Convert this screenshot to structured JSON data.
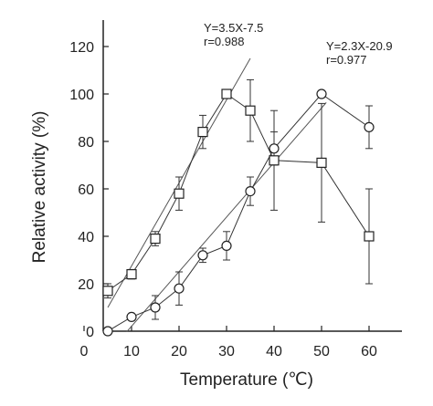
{
  "chart_data": {
    "type": "scatter",
    "xlabel": "Temperature (℃)",
    "ylabel": "Relative activity (%)",
    "xlim": [
      0,
      65
    ],
    "ylim": [
      0,
      130
    ],
    "x_ticks": [
      0,
      10,
      20,
      30,
      40,
      50,
      60
    ],
    "y_ticks": [
      0,
      20,
      40,
      60,
      80,
      100,
      120
    ],
    "grid": false,
    "legend": "none",
    "series": [
      {
        "marker": "square",
        "x": [
          5,
          10,
          15,
          20,
          25,
          30,
          35,
          40,
          50,
          60
        ],
        "y": [
          17,
          24,
          39,
          58,
          84,
          100,
          93,
          72,
          71,
          40
        ],
        "err": [
          3,
          2,
          3,
          7,
          7,
          0,
          13,
          21,
          25,
          20
        ],
        "fit_line": {
          "slope": 3.5,
          "intercept": -7.5,
          "x_range": [
            5,
            35
          ]
        }
      },
      {
        "marker": "circle",
        "x": [
          5,
          10,
          15,
          20,
          25,
          30,
          35,
          40,
          50,
          60
        ],
        "y": [
          0,
          6,
          10,
          18,
          32,
          36,
          59,
          77,
          100,
          86
        ],
        "err": [
          1,
          1,
          5,
          7,
          3,
          6,
          6,
          7,
          1,
          9
        ],
        "fit_line": {
          "slope": 2.3,
          "intercept": -20.9,
          "x_range": [
            9,
            51
          ]
        }
      }
    ],
    "annotations": [
      {
        "id": "ann1",
        "lines": [
          "Y=3.5X-7.5",
          "r=0.988"
        ]
      },
      {
        "id": "ann2",
        "lines": [
          "Y=2.3X-20.9",
          "r=0.977"
        ]
      }
    ]
  }
}
